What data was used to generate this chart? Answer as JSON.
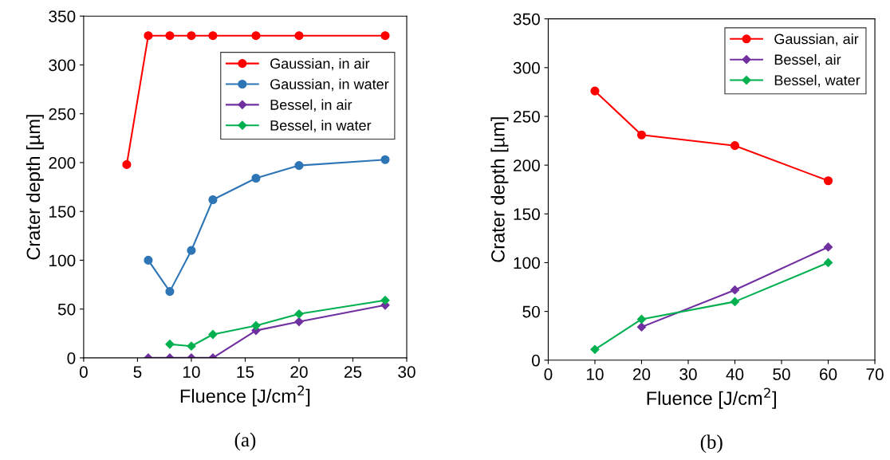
{
  "chart_data": [
    {
      "type": "line",
      "xlabel": "Fluence [J/cm$^{2}$]",
      "ylabel": "Crater depth [µm]",
      "annotations": [
        "(a)"
      ],
      "xlim": [
        0,
        30
      ],
      "xticks": [
        0,
        5,
        10,
        15,
        20,
        25,
        30
      ],
      "ylim": [
        0,
        350
      ],
      "yticks": [
        0,
        50,
        100,
        150,
        200,
        250,
        300,
        350
      ],
      "grid": false,
      "legend": "top right",
      "series": [
        {
          "name": "Gaussian, in air",
          "color": "#ff0000",
          "marker": "circle",
          "x": [
            4,
            6,
            8,
            10,
            12,
            16,
            20,
            28
          ],
          "values": [
            198,
            330,
            330,
            330,
            330,
            330,
            330,
            330
          ]
        },
        {
          "name": "Gaussian, in water",
          "color": "#2e75b6",
          "marker": "circle",
          "x": [
            6,
            8,
            10,
            12,
            16,
            20,
            28
          ],
          "values": [
            100,
            68,
            110,
            162,
            184,
            197,
            203
          ]
        },
        {
          "name": "Bessel, in air",
          "color": "#7030a0",
          "marker": "diamond",
          "x": [
            6,
            8,
            10,
            12,
            16,
            20,
            28
          ],
          "values": [
            0,
            0,
            0,
            0,
            28,
            37,
            54
          ]
        },
        {
          "name": "Bessel, in water",
          "color": "#00b050",
          "marker": "diamond",
          "x": [
            8,
            10,
            12,
            16,
            20,
            28
          ],
          "values": [
            14,
            12,
            24,
            33,
            45,
            59
          ]
        }
      ]
    },
    {
      "type": "line",
      "xlabel": "Fluence [J/cm$^{2}$]",
      "ylabel": "Crater depth [µm]",
      "annotations": [
        "(b)"
      ],
      "xlim": [
        0,
        70
      ],
      "xticks": [
        0,
        10,
        20,
        30,
        40,
        50,
        60,
        70
      ],
      "ylim": [
        0,
        350
      ],
      "yticks": [
        0,
        50,
        100,
        150,
        200,
        250,
        300,
        350
      ],
      "grid": false,
      "legend": "top right",
      "series": [
        {
          "name": "Gaussian, air",
          "color": "#ff0000",
          "marker": "circle",
          "x": [
            10,
            20,
            40,
            60
          ],
          "values": [
            276,
            231,
            220,
            184
          ]
        },
        {
          "name": "Bessel, air",
          "color": "#7030a0",
          "marker": "diamond",
          "x": [
            20,
            40,
            60
          ],
          "values": [
            34,
            72,
            116
          ]
        },
        {
          "name": "Bessel, water",
          "color": "#00b050",
          "marker": "diamond",
          "x": [
            10,
            20,
            40,
            60
          ],
          "values": [
            11,
            42,
            60,
            100
          ]
        }
      ]
    }
  ]
}
